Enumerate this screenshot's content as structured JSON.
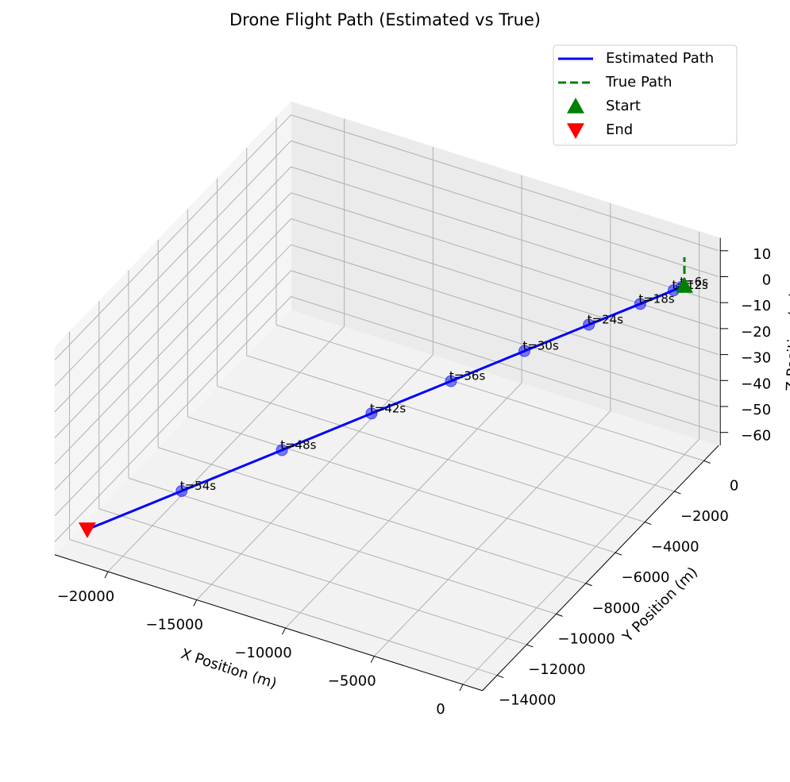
{
  "chart_data": {
    "type": "line3d",
    "title": "Drone Flight Path (Estimated vs True)",
    "xlabel": "X Position (m)",
    "ylabel": "Y Position (m)",
    "zlabel": "Z Position (m)",
    "xlim": [
      -23000,
      1100
    ],
    "ylim": [
      -15000,
      1000
    ],
    "zlim": [
      -65,
      15
    ],
    "xticks": [
      {
        "value": -20000,
        "label": "−20000"
      },
      {
        "value": -15000,
        "label": "−15000"
      },
      {
        "value": -10000,
        "label": "−10000"
      },
      {
        "value": -5000,
        "label": "−5000"
      },
      0
    ],
    "yticks": [
      {
        "value": -14000,
        "label": "−14000"
      },
      {
        "value": -12000,
        "label": "−12000"
      },
      {
        "value": -10000,
        "label": "−10000"
      },
      {
        "value": -8000,
        "label": "−8000"
      },
      {
        "value": -6000,
        "label": "−6000"
      },
      {
        "value": -4000,
        "label": "−4000"
      },
      {
        "value": -2000,
        "label": "−2000"
      },
      0
    ],
    "zticks": [
      {
        "value": -60,
        "label": "−60"
      },
      {
        "value": -50,
        "label": "−50"
      },
      {
        "value": -40,
        "label": "−40"
      },
      {
        "value": -30,
        "label": "−30"
      },
      {
        "value": -20,
        "label": "−20"
      },
      {
        "value": -10,
        "label": "−10"
      },
      0,
      10
    ],
    "grid": true,
    "legend": "upper right",
    "series": [
      {
        "name": "Estimated Path",
        "color": "#0000ff",
        "style": "solid",
        "x": [
          0,
          -110,
          -396,
          -1628,
          -3520,
          -5896,
          -8602,
          -11528,
          -14828,
          -18524,
          -22000
        ],
        "y": [
          0,
          -70,
          -252,
          -1036,
          -2240,
          -3752,
          -5474,
          -7336,
          -9436,
          -11788,
          -14000
        ],
        "z": [
          0,
          -0.3,
          -1.1,
          -4.4,
          -9.4,
          -15.8,
          -23.1,
          -30.9,
          -39.8,
          -49.7,
          -59
        ]
      },
      {
        "name": "True Path",
        "color": "#008000",
        "style": "dashed",
        "x": [
          0,
          0,
          0
        ],
        "y": [
          0,
          0,
          0
        ],
        "z": [
          0,
          5,
          11
        ]
      }
    ],
    "points": [
      {
        "name": "Start",
        "color": "#008000",
        "marker": "triangle-up",
        "x": 0,
        "y": 0,
        "z": 0
      },
      {
        "name": "End",
        "color": "#ff0000",
        "marker": "triangle-down",
        "x": -22000,
        "y": -14000,
        "z": -59
      }
    ],
    "markers": {
      "color": "#0000ff",
      "labels": [
        "t=6s",
        "t=12s",
        "t=18s",
        "t=24s",
        "t=30s",
        "t=36s",
        "t=42s",
        "t=48s",
        "t=54s"
      ],
      "x": [
        -110,
        -396,
        -1628,
        -3520,
        -5896,
        -8602,
        -11528,
        -14828,
        -18524
      ],
      "y": [
        -70,
        -252,
        -1036,
        -2240,
        -3752,
        -5474,
        -7336,
        -9436,
        -11788
      ],
      "z": [
        -0.3,
        -1.1,
        -4.4,
        -9.4,
        -15.8,
        -23.1,
        -30.9,
        -39.8,
        -49.7
      ]
    }
  }
}
